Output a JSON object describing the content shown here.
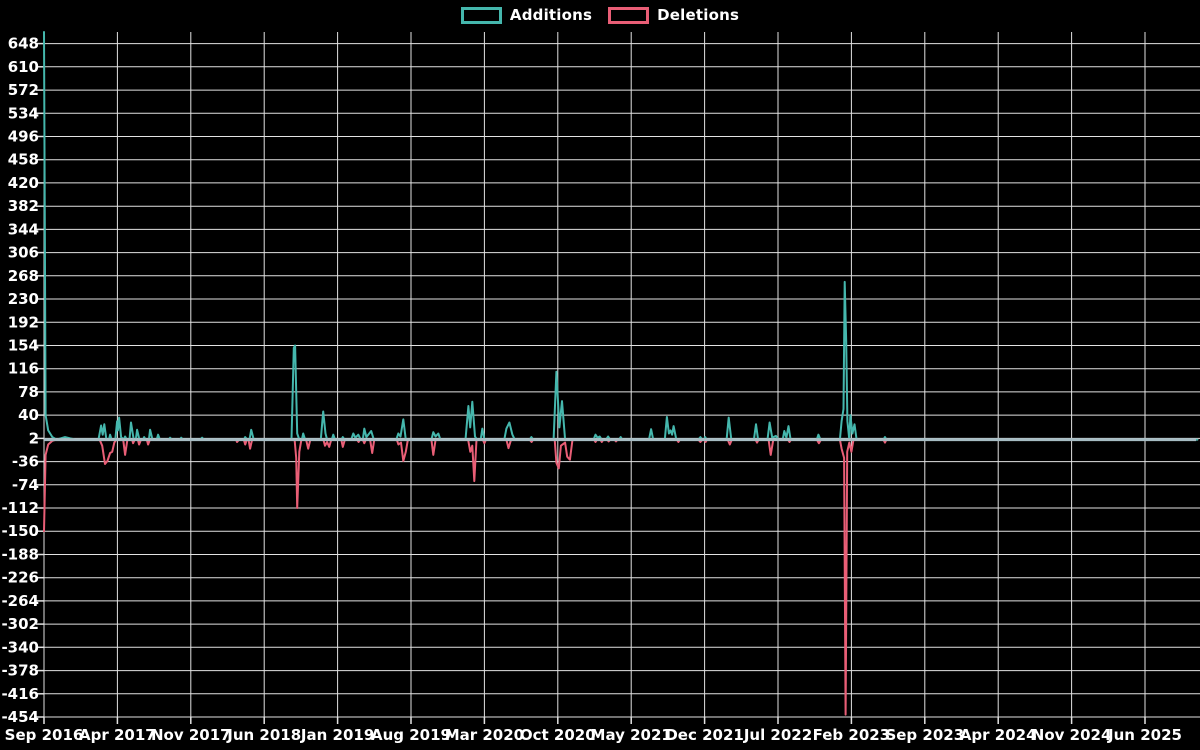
{
  "colors": {
    "background": "#000000",
    "grid": "#e2e2e2",
    "tick": "#e2e2e2",
    "text": "#ffffff",
    "baseline": "#a6bcc3",
    "additions": "#45b7ad",
    "deletions": "#e95e76"
  },
  "legend": {
    "items": [
      {
        "label": "Additions",
        "color": "#45b7ad"
      },
      {
        "label": "Deletions",
        "color": "#e95e76"
      }
    ]
  },
  "chart_data": {
    "type": "line",
    "title": "",
    "xlabel": "",
    "ylabel": "",
    "grid": true,
    "legend_position": "top-center",
    "x_tick_labels": [
      "Sep 2016",
      "Apr 2017",
      "Nov 2017",
      "Jun 2018",
      "Jan 2019",
      "Aug 2019",
      "Mar 2020",
      "Oct 2020",
      "May 2021",
      "Dec 2021",
      "Jul 2022",
      "Feb 2023",
      "Sep 2023",
      "Apr 2024",
      "Nov 2024",
      "Jun 2025"
    ],
    "x_months_per_tick": 7,
    "x_max_months": 110,
    "y_ticks": [
      648,
      610,
      572,
      534,
      496,
      458,
      420,
      382,
      344,
      306,
      268,
      230,
      192,
      154,
      116,
      78,
      40,
      2,
      -36,
      -74,
      -112,
      -150,
      -188,
      -226,
      -264,
      -302,
      -340,
      -378,
      -416,
      -454
    ],
    "y_max": 667,
    "y_min": -454,
    "baseline_value": 0,
    "series": [
      {
        "name": "Additions",
        "color": "#45b7ad",
        "points": [
          [
            0,
            667
          ],
          [
            0.15,
            40
          ],
          [
            0.4,
            15
          ],
          [
            0.8,
            4
          ],
          [
            1.2,
            0
          ],
          [
            2.0,
            4
          ],
          [
            2.5,
            2
          ],
          [
            3.0,
            0
          ],
          [
            5.2,
            0
          ],
          [
            5.45,
            23
          ],
          [
            5.6,
            8
          ],
          [
            5.75,
            25
          ],
          [
            5.95,
            0
          ],
          [
            6.2,
            0
          ],
          [
            6.3,
            8
          ],
          [
            6.45,
            0
          ],
          [
            6.8,
            0
          ],
          [
            6.97,
            30
          ],
          [
            7.05,
            15
          ],
          [
            7.16,
            36
          ],
          [
            7.35,
            4
          ],
          [
            7.6,
            0
          ],
          [
            7.73,
            5
          ],
          [
            7.9,
            0
          ],
          [
            8.15,
            0
          ],
          [
            8.3,
            28
          ],
          [
            8.55,
            0
          ],
          [
            8.75,
            0
          ],
          [
            8.88,
            16
          ],
          [
            9.1,
            0
          ],
          [
            9.45,
            0
          ],
          [
            9.55,
            4
          ],
          [
            9.7,
            0
          ],
          [
            10.0,
            0
          ],
          [
            10.12,
            16
          ],
          [
            10.35,
            0
          ],
          [
            10.75,
            0
          ],
          [
            10.88,
            8
          ],
          [
            11.05,
            0
          ],
          [
            11.9,
            0
          ],
          [
            12.03,
            3
          ],
          [
            12.2,
            0
          ],
          [
            12.95,
            0
          ],
          [
            13.08,
            3
          ],
          [
            13.25,
            0
          ],
          [
            14.9,
            0
          ],
          [
            15.08,
            3
          ],
          [
            15.25,
            0
          ],
          [
            19.05,
            0
          ],
          [
            19.19,
            4
          ],
          [
            19.4,
            0
          ],
          [
            19.6,
            0
          ],
          [
            19.76,
            16
          ],
          [
            20.0,
            0
          ],
          [
            23.6,
            0
          ],
          [
            23.82,
            150
          ],
          [
            23.95,
            154
          ],
          [
            24.15,
            10
          ],
          [
            24.35,
            0
          ],
          [
            24.6,
            0
          ],
          [
            24.72,
            10
          ],
          [
            24.9,
            0
          ],
          [
            26.4,
            0
          ],
          [
            26.63,
            46
          ],
          [
            26.85,
            10
          ],
          [
            27.0,
            0
          ],
          [
            27.45,
            0
          ],
          [
            27.59,
            8
          ],
          [
            27.75,
            0
          ],
          [
            28.35,
            0
          ],
          [
            28.5,
            4
          ],
          [
            28.65,
            0
          ],
          [
            29.3,
            0
          ],
          [
            29.5,
            10
          ],
          [
            29.7,
            3
          ],
          [
            29.97,
            8
          ],
          [
            30.2,
            0
          ],
          [
            30.4,
            0
          ],
          [
            30.55,
            18
          ],
          [
            30.75,
            4
          ],
          [
            31.2,
            14
          ],
          [
            31.45,
            0
          ],
          [
            33.6,
            0
          ],
          [
            33.79,
            10
          ],
          [
            34.0,
            5
          ],
          [
            34.27,
            33
          ],
          [
            34.5,
            0
          ],
          [
            36.95,
            0
          ],
          [
            37.13,
            12
          ],
          [
            37.35,
            5
          ],
          [
            37.6,
            10
          ],
          [
            37.8,
            0
          ],
          [
            40.2,
            0
          ],
          [
            40.47,
            55
          ],
          [
            40.65,
            20
          ],
          [
            40.85,
            62
          ],
          [
            41.1,
            5
          ],
          [
            41.3,
            0
          ],
          [
            41.65,
            0
          ],
          [
            41.8,
            18
          ],
          [
            42.0,
            0
          ],
          [
            43.9,
            0
          ],
          [
            44.1,
            18
          ],
          [
            44.38,
            28
          ],
          [
            44.67,
            8
          ],
          [
            44.9,
            0
          ],
          [
            46.3,
            0
          ],
          [
            46.48,
            4
          ],
          [
            46.65,
            0
          ],
          [
            48.6,
            0
          ],
          [
            48.87,
            111
          ],
          [
            49.15,
            20
          ],
          [
            49.4,
            63
          ],
          [
            49.7,
            0
          ],
          [
            52.4,
            0
          ],
          [
            52.6,
            8
          ],
          [
            52.8,
            3
          ],
          [
            53.0,
            5
          ],
          [
            53.2,
            0
          ],
          [
            53.6,
            0
          ],
          [
            53.8,
            5
          ],
          [
            54.0,
            0
          ],
          [
            54.85,
            0
          ],
          [
            55.0,
            4
          ],
          [
            55.15,
            0
          ],
          [
            57.7,
            0
          ],
          [
            57.9,
            17
          ],
          [
            58.1,
            0
          ],
          [
            59.2,
            0
          ],
          [
            59.4,
            37
          ],
          [
            59.6,
            10
          ],
          [
            59.75,
            15
          ],
          [
            59.9,
            8
          ],
          [
            60.04,
            22
          ],
          [
            60.3,
            0
          ],
          [
            62.4,
            0
          ],
          [
            62.6,
            4
          ],
          [
            62.8,
            0
          ],
          [
            62.95,
            0
          ],
          [
            63.05,
            4
          ],
          [
            63.2,
            0
          ],
          [
            65.1,
            0
          ],
          [
            65.3,
            36
          ],
          [
            65.55,
            0
          ],
          [
            67.7,
            0
          ],
          [
            67.9,
            25
          ],
          [
            68.1,
            0
          ],
          [
            69.0,
            0
          ],
          [
            69.2,
            28
          ],
          [
            69.45,
            3
          ],
          [
            69.8,
            6
          ],
          [
            70.0,
            0
          ],
          [
            70.45,
            0
          ],
          [
            70.6,
            14
          ],
          [
            70.8,
            3
          ],
          [
            71.0,
            22
          ],
          [
            71.2,
            0
          ],
          [
            73.7,
            0
          ],
          [
            73.85,
            8
          ],
          [
            74.05,
            0
          ],
          [
            75.9,
            0
          ],
          [
            76.07,
            30
          ],
          [
            76.25,
            50
          ],
          [
            76.36,
            258
          ],
          [
            76.5,
            160
          ],
          [
            76.62,
            30
          ],
          [
            76.8,
            0
          ],
          [
            76.9,
            40
          ],
          [
            77.1,
            10
          ],
          [
            77.3,
            25
          ],
          [
            77.5,
            0
          ],
          [
            80.05,
            0
          ],
          [
            80.2,
            4
          ],
          [
            80.35,
            0
          ],
          [
            110,
            0
          ]
        ]
      },
      {
        "name": "Deletions",
        "color": "#e95e76",
        "points": [
          [
            0,
            -150
          ],
          [
            0.15,
            -25
          ],
          [
            0.4,
            -8
          ],
          [
            0.8,
            -2
          ],
          [
            1.2,
            0
          ],
          [
            5.3,
            0
          ],
          [
            5.55,
            -10
          ],
          [
            5.82,
            -40
          ],
          [
            6.05,
            -35
          ],
          [
            6.3,
            -22
          ],
          [
            6.5,
            -20
          ],
          [
            6.7,
            -5
          ],
          [
            6.9,
            0
          ],
          [
            7.55,
            0
          ],
          [
            7.73,
            -25
          ],
          [
            7.95,
            0
          ],
          [
            8.4,
            0
          ],
          [
            8.5,
            -6
          ],
          [
            8.65,
            0
          ],
          [
            8.95,
            0
          ],
          [
            9.07,
            -8
          ],
          [
            9.25,
            0
          ],
          [
            9.8,
            0
          ],
          [
            9.93,
            -8
          ],
          [
            10.1,
            0
          ],
          [
            18.3,
            0
          ],
          [
            18.42,
            -4
          ],
          [
            18.6,
            0
          ],
          [
            19.05,
            0
          ],
          [
            19.19,
            -8
          ],
          [
            19.35,
            0
          ],
          [
            19.5,
            0
          ],
          [
            19.66,
            -15
          ],
          [
            19.85,
            0
          ],
          [
            23.9,
            0
          ],
          [
            24.05,
            -30
          ],
          [
            24.15,
            -112
          ],
          [
            24.35,
            -20
          ],
          [
            24.55,
            0
          ],
          [
            25.0,
            0
          ],
          [
            25.2,
            -15
          ],
          [
            25.4,
            0
          ],
          [
            26.65,
            0
          ],
          [
            26.8,
            -10
          ],
          [
            27.0,
            -4
          ],
          [
            27.2,
            -12
          ],
          [
            27.4,
            0
          ],
          [
            28.35,
            0
          ],
          [
            28.5,
            -12
          ],
          [
            28.7,
            0
          ],
          [
            29.85,
            0
          ],
          [
            30.0,
            -4
          ],
          [
            30.15,
            0
          ],
          [
            30.4,
            0
          ],
          [
            30.55,
            -6
          ],
          [
            30.7,
            0
          ],
          [
            31.1,
            0
          ],
          [
            31.3,
            -22
          ],
          [
            31.5,
            0
          ],
          [
            33.65,
            0
          ],
          [
            33.8,
            -8
          ],
          [
            34.05,
            -5
          ],
          [
            34.27,
            -35
          ],
          [
            34.5,
            -20
          ],
          [
            34.7,
            0
          ],
          [
            36.95,
            0
          ],
          [
            37.13,
            -25
          ],
          [
            37.35,
            0
          ],
          [
            40.45,
            0
          ],
          [
            40.66,
            -20
          ],
          [
            40.85,
            -10
          ],
          [
            41.04,
            -68
          ],
          [
            41.25,
            0
          ],
          [
            41.85,
            0
          ],
          [
            42.0,
            -6
          ],
          [
            42.15,
            0
          ],
          [
            44.1,
            0
          ],
          [
            44.3,
            -14
          ],
          [
            44.55,
            0
          ],
          [
            46.3,
            0
          ],
          [
            46.5,
            -4
          ],
          [
            46.65,
            0
          ],
          [
            48.7,
            0
          ],
          [
            48.87,
            -38
          ],
          [
            49.1,
            -47
          ],
          [
            49.3,
            -10
          ],
          [
            49.7,
            -5
          ],
          [
            49.9,
            -28
          ],
          [
            50.15,
            -33
          ],
          [
            50.4,
            0
          ],
          [
            52.45,
            0
          ],
          [
            52.6,
            -4
          ],
          [
            52.75,
            0
          ],
          [
            53.05,
            0
          ],
          [
            53.2,
            -4
          ],
          [
            53.35,
            0
          ],
          [
            53.7,
            0
          ],
          [
            53.85,
            -3
          ],
          [
            54.0,
            0
          ],
          [
            54.4,
            0
          ],
          [
            54.55,
            -3
          ],
          [
            54.7,
            0
          ],
          [
            60.35,
            0
          ],
          [
            60.5,
            -4
          ],
          [
            60.65,
            0
          ],
          [
            62.4,
            0
          ],
          [
            62.6,
            -4
          ],
          [
            62.8,
            0
          ],
          [
            62.95,
            0
          ],
          [
            63.1,
            -4
          ],
          [
            63.25,
            0
          ],
          [
            65.2,
            0
          ],
          [
            65.4,
            -8
          ],
          [
            65.6,
            0
          ],
          [
            67.85,
            0
          ],
          [
            68.0,
            -5
          ],
          [
            68.15,
            0
          ],
          [
            69.1,
            0
          ],
          [
            69.3,
            -25
          ],
          [
            69.55,
            0
          ],
          [
            70.95,
            0
          ],
          [
            71.1,
            -4
          ],
          [
            71.25,
            0
          ],
          [
            73.7,
            0
          ],
          [
            73.9,
            -6
          ],
          [
            74.1,
            0
          ],
          [
            75.9,
            0
          ],
          [
            76.07,
            -15
          ],
          [
            76.3,
            -30
          ],
          [
            76.45,
            -450
          ],
          [
            76.6,
            -20
          ],
          [
            76.8,
            -5
          ],
          [
            77.0,
            -20
          ],
          [
            77.2,
            0
          ],
          [
            80.05,
            0
          ],
          [
            80.2,
            -5
          ],
          [
            80.35,
            0
          ],
          [
            110,
            0
          ]
        ]
      }
    ]
  }
}
